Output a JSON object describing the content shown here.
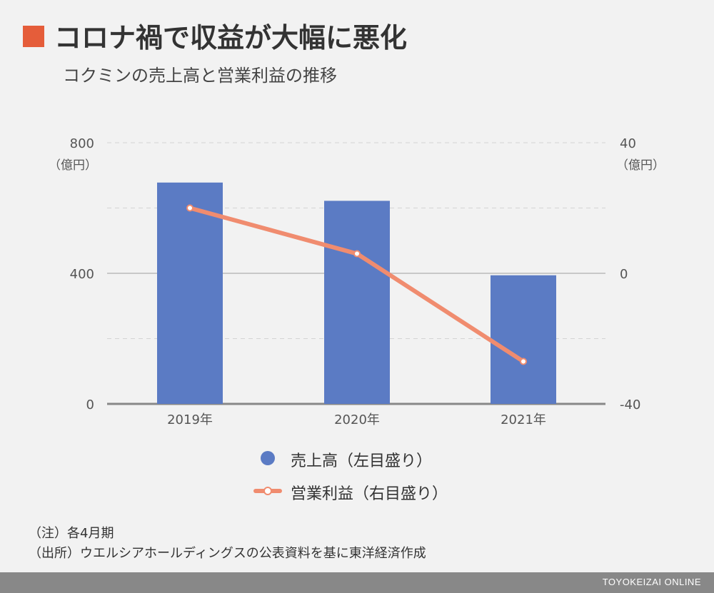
{
  "header": {
    "title": "コロナ禍で収益が大幅に悪化",
    "subtitle": "コクミンの売上高と営業利益の推移"
  },
  "colors": {
    "accent": "#e55d3a",
    "bar": "#5b7bc4",
    "line": "#f08c6f",
    "footer": "#888888"
  },
  "chart_data": {
    "type": "bar",
    "categories": [
      "2019年",
      "2020年",
      "2021年"
    ],
    "series": [
      {
        "name": "売上高（左目盛り）",
        "type": "bar",
        "axis": "left",
        "values": [
          678,
          622,
          394
        ]
      },
      {
        "name": "営業利益（右目盛り）",
        "type": "line",
        "axis": "right",
        "values": [
          20,
          6,
          -27
        ]
      }
    ],
    "left_axis": {
      "ylim": [
        0,
        800
      ],
      "ticks": [
        "0",
        "400",
        "800"
      ],
      "unit": "（億円）"
    },
    "right_axis": {
      "ylim": [
        -40,
        40
      ],
      "ticks": [
        "-40",
        "0",
        "40"
      ],
      "unit": "（億円）"
    },
    "grid": true,
    "legend_position": "bottom"
  },
  "legend": {
    "bar_label": "売上高（左目盛り）",
    "line_label": "営業利益（右目盛り）"
  },
  "notes": {
    "note1": "（注）各4月期",
    "note2": "（出所）ウエルシアホールディングスの公表資料を基に東洋経済作成"
  },
  "footer": {
    "brand": "TOYOKEIZAI ONLINE"
  }
}
